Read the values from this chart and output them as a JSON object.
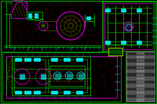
{
  "bg_color": "#000000",
  "gl": "#00cc00",
  "cy": "#00ffff",
  "mg": "#cc00cc",
  "ol": "#666600",
  "yw": "#cccc00",
  "dot_color": "#330000",
  "figsize": [
    2.0,
    1.33
  ],
  "dpi": 100
}
